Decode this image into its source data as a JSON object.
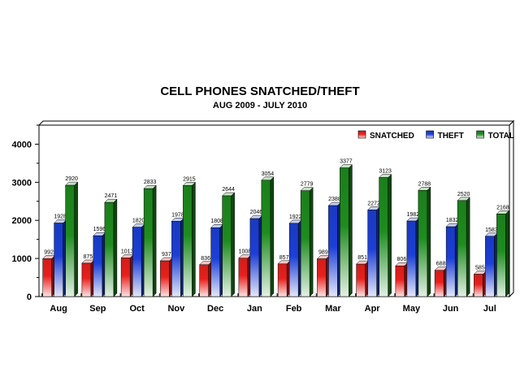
{
  "chart_data": {
    "type": "bar",
    "title": "CELL PHONES SNATCHED/THEFT",
    "subtitle": "AUG 2009 - JULY 2010",
    "xlabel": "",
    "ylabel": "",
    "ylim": [
      0,
      4500
    ],
    "yticks": [
      0,
      1000,
      2000,
      3000,
      4000
    ],
    "categories": [
      "Aug",
      "Sep",
      "Oct",
      "Nov",
      "Dec",
      "Jan",
      "Feb",
      "Mar",
      "Apr",
      "May",
      "Jun",
      "Jul"
    ],
    "series": [
      {
        "name": "SNATCHED",
        "color": "#e8201c",
        "values": [
          992,
          875,
          1013,
          937,
          836,
          1008,
          857,
          989,
          851,
          806,
          688,
          585
        ]
      },
      {
        "name": "THEFT",
        "color": "#1c3fd6",
        "values": [
          1928,
          1596,
          1820,
          1978,
          1808,
          2046,
          1922,
          2388,
          2272,
          1982,
          1832,
          1583
        ]
      },
      {
        "name": "TOTAL",
        "color": "#1e8c1e",
        "values": [
          2920,
          2471,
          2833,
          2915,
          2644,
          3054,
          2779,
          3377,
          3123,
          2788,
          2520,
          2168
        ]
      }
    ],
    "legend_position": "top-right",
    "grid": false
  }
}
